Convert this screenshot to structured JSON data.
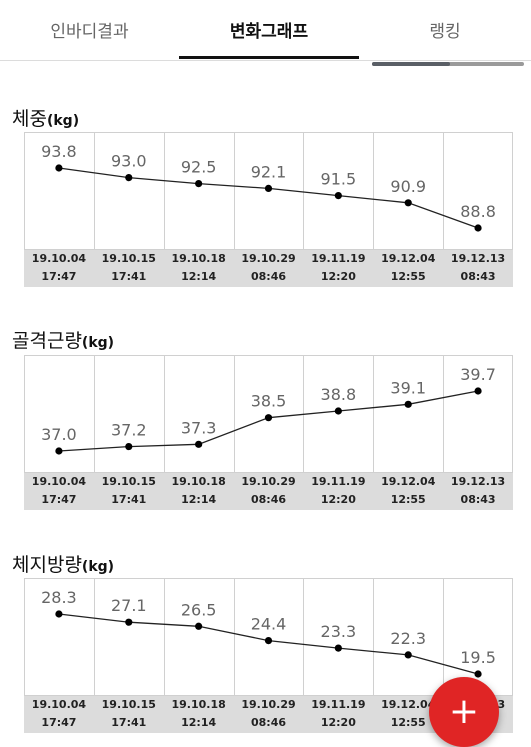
{
  "tabs": [
    {
      "label": "인바디결과"
    },
    {
      "label": "변화그래프"
    },
    {
      "label": "랭킹"
    }
  ],
  "dates": [
    {
      "date": "19.10.04",
      "time": "17:47"
    },
    {
      "date": "19.10.15",
      "time": "17:41"
    },
    {
      "date": "19.10.18",
      "time": "12:14"
    },
    {
      "date": "19.10.29",
      "time": "08:46"
    },
    {
      "date": "19.11.19",
      "time": "12:20"
    },
    {
      "date": "19.12.04",
      "time": "12:55"
    },
    {
      "date": "19.12.13",
      "time": "08:43"
    }
  ],
  "charts": [
    {
      "title": "체중",
      "unit": "(kg)",
      "values": [
        93.8,
        93.0,
        92.5,
        92.1,
        91.5,
        90.9,
        88.8
      ],
      "labels": [
        "93.8",
        "93.0",
        "92.5",
        "92.1",
        "91.5",
        "90.9",
        "88.8"
      ]
    },
    {
      "title": "골격근량",
      "unit": "(kg)",
      "values": [
        37.0,
        37.2,
        37.3,
        38.5,
        38.8,
        39.1,
        39.7
      ],
      "labels": [
        "37.0",
        "37.2",
        "37.3",
        "38.5",
        "38.8",
        "39.1",
        "39.7"
      ]
    },
    {
      "title": "체지방량",
      "unit": "(kg)",
      "values": [
        28.3,
        27.1,
        26.5,
        24.4,
        23.3,
        22.3,
        19.5
      ],
      "labels": [
        "28.3",
        "27.1",
        "26.5",
        "24.4",
        "23.3",
        "22.3",
        "19.5"
      ]
    }
  ],
  "fab": {
    "label": "+",
    "color": "#e02525"
  },
  "colors": {
    "line": "#222222",
    "grid": "#d0d0d0",
    "date_band": "#dcdcdc",
    "value_label": "#666666"
  }
}
